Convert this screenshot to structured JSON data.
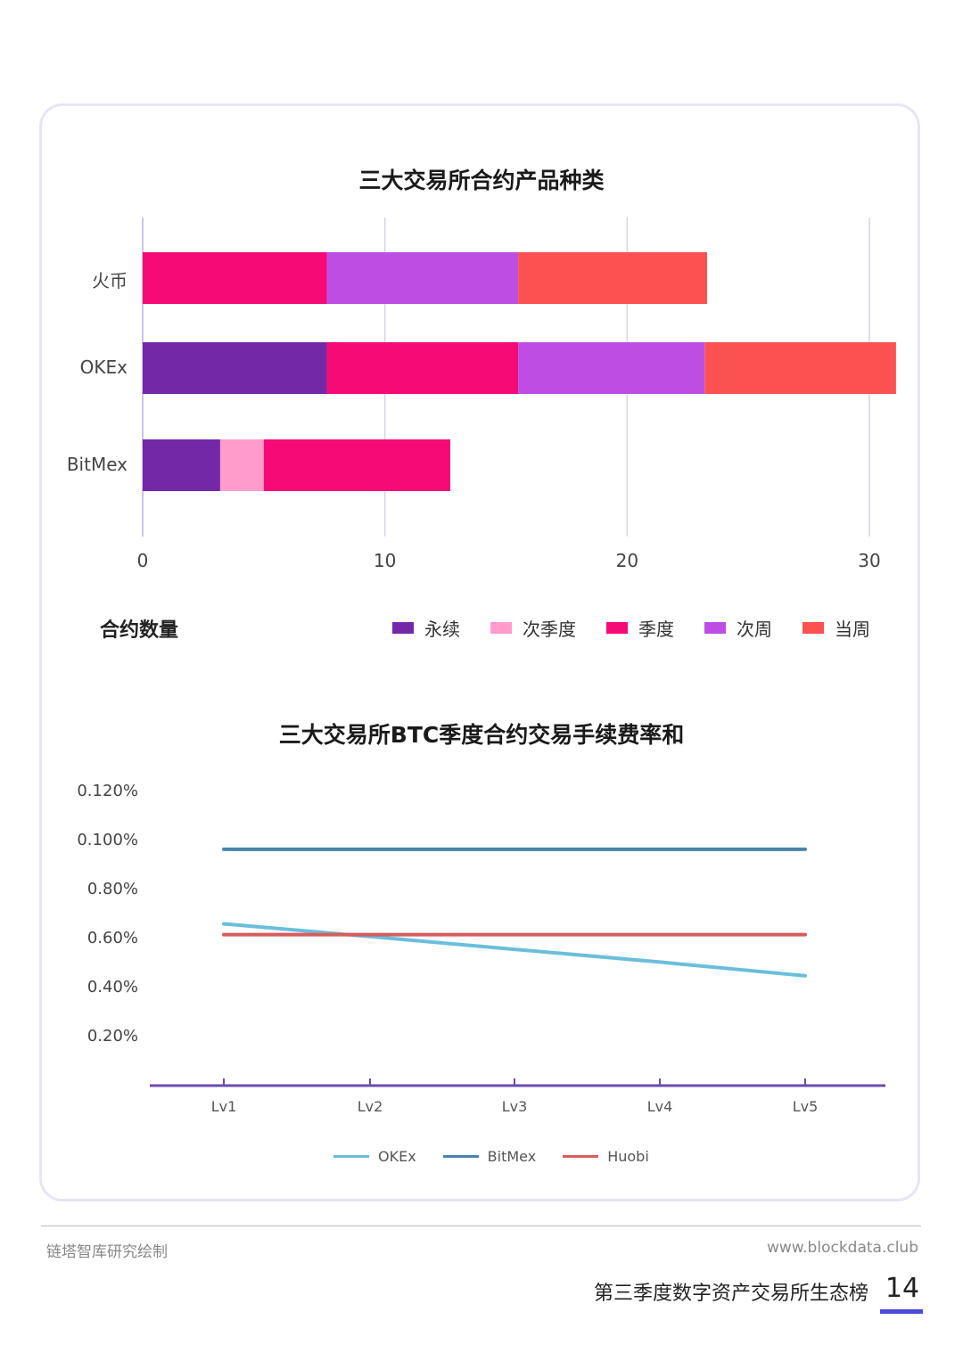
{
  "chart_data": [
    {
      "type": "bar",
      "orientation": "horizontal",
      "stacked": true,
      "title": "三大交易所合约产品种类",
      "xlabel": "合约数量",
      "ylabel": "",
      "categories": [
        "火币",
        "OKEx",
        "BitMex"
      ],
      "xlim": [
        0,
        31
      ],
      "xticks": [
        "0",
        "10",
        "20",
        "30"
      ],
      "grid": true,
      "legend_position": "bottom-right",
      "series": [
        {
          "name": "永续",
          "color": "#7328a8",
          "values": [
            0,
            7.6,
            3.2
          ]
        },
        {
          "name": "次季度",
          "color": "#ff9ccc",
          "values": [
            0,
            0,
            1.8
          ]
        },
        {
          "name": "季度",
          "color": "#f50a76",
          "values": [
            7.6,
            7.9,
            7.7
          ]
        },
        {
          "name": "次周",
          "color": "#be4de4",
          "values": [
            7.9,
            7.7,
            0
          ]
        },
        {
          "name": "当周",
          "color": "#fb5151",
          "values": [
            7.8,
            7.9,
            0
          ]
        }
      ]
    },
    {
      "type": "line",
      "title": "三大交易所BTC季度合约交易手续费率和",
      "xlabel": "",
      "ylabel": "",
      "categories": [
        "Lv1",
        "Lv2",
        "Lv3",
        "Lv4",
        "Lv5"
      ],
      "yticks": [
        "0.20%",
        "0.40%",
        "0.60%",
        "0.80%",
        "0.100%",
        "0.120%"
      ],
      "ylim": [
        0,
        6
      ],
      "grid": false,
      "legend_position": "bottom",
      "series": [
        {
          "name": "OKEx",
          "color": "#6abedb",
          "values": [
            3.3,
            3.04,
            2.78,
            2.52,
            2.24
          ]
        },
        {
          "name": "BitMex",
          "color": "#4a84ad",
          "values": [
            4.82,
            4.82,
            4.82,
            4.82,
            4.82
          ]
        },
        {
          "name": "Huobi",
          "color": "#d85c5c",
          "values": [
            3.08,
            3.08,
            3.08,
            3.08,
            3.08
          ]
        }
      ]
    }
  ],
  "footer": {
    "source": "链塔智库研究绘制",
    "website": "www.blockdata.club",
    "report_title": "第三季度数字资产交易所生态榜",
    "page_number": "14"
  },
  "colors": {
    "card_border": "#e6e5f6",
    "page_accent": "#4b4ad8",
    "grid": "#d6d3ef",
    "axis": "#6a4bb0"
  }
}
